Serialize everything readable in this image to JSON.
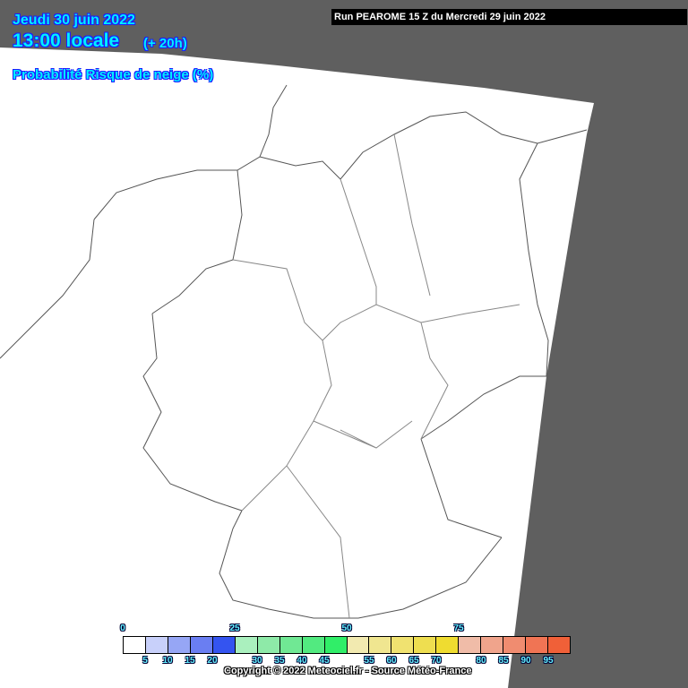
{
  "header": {
    "date": "Jeudi 30 juin 2022",
    "time": "13:00 locale",
    "lead": "(+ 20h)",
    "parameter": "Probabilité Risque de neige (%)",
    "run": "Run PEAROME 15 Z du Mercredi 29 juin 2022"
  },
  "legend": {
    "unit": "%",
    "top_labels": [
      "0",
      "25",
      "50",
      "75"
    ],
    "bottom_labels": [
      "5",
      "10",
      "15",
      "20",
      "30",
      "35",
      "40",
      "45",
      "55",
      "60",
      "65",
      "70",
      "80",
      "85",
      "90",
      "95"
    ],
    "colors": [
      "#ffffff",
      "#c8d0fa",
      "#96a6f5",
      "#6a7ef2",
      "#3454f0",
      "#aaf0be",
      "#8eeaa8",
      "#70e894",
      "#52ea80",
      "#30ee68",
      "#f2eab0",
      "#f0e690",
      "#f0e270",
      "#eede50",
      "#efdc30",
      "#f0bca8",
      "#f0a48c",
      "#f08c70",
      "#f07454",
      "#f06038"
    ]
  },
  "copyright": "Copyright © 2022 Meteociel.fr - Source Météo-France",
  "colors": {
    "outside_domain": "#5f5f5f",
    "domain": "#ffffff",
    "borders": "#555555"
  }
}
